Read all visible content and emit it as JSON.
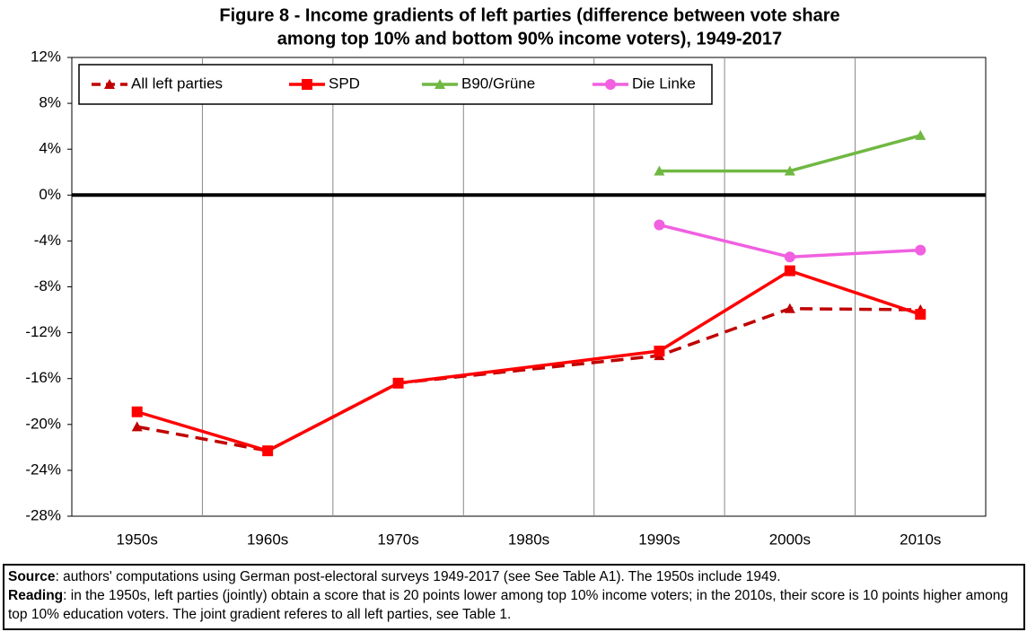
{
  "chart_data": {
    "type": "line",
    "title": [
      "Figure 8 - Income gradients of left parties (difference between vote share",
      "among top 10% and bottom 90% income voters), 1949-2017"
    ],
    "categories": [
      "1950s",
      "1960s",
      "1970s",
      "1980s",
      "1990s",
      "2000s",
      "2010s"
    ],
    "series": [
      {
        "name": "All left parties",
        "color": "#c00000",
        "dashed": true,
        "marker": "triangle",
        "values": [
          -20.2,
          -22.3,
          -16.4,
          null,
          -14.0,
          -9.9,
          -10.0
        ]
      },
      {
        "name": "SPD",
        "color": "#ff0000",
        "dashed": false,
        "marker": "square",
        "values": [
          -18.9,
          -22.3,
          -16.4,
          null,
          -13.6,
          -6.6,
          -10.4
        ]
      },
      {
        "name": "B90/Grüne",
        "color": "#70b843",
        "dashed": false,
        "marker": "triangle",
        "values": [
          null,
          null,
          null,
          null,
          2.1,
          2.1,
          5.2
        ]
      },
      {
        "name": "Die Linke",
        "color": "#f060e0",
        "dashed": false,
        "marker": "circle",
        "values": [
          null,
          null,
          null,
          null,
          -2.6,
          -5.4,
          -4.8
        ]
      }
    ],
    "span_gaps": true,
    "ylim": [
      -28,
      12
    ],
    "yticks": [
      {
        "value": -28,
        "label": "-28%"
      },
      {
        "value": -24,
        "label": "-24%"
      },
      {
        "value": -20,
        "label": "-20%"
      },
      {
        "value": -16,
        "label": "-16%"
      },
      {
        "value": -12,
        "label": "-12%"
      },
      {
        "value": -8,
        "label": "-8%"
      },
      {
        "value": -4,
        "label": "-4%"
      },
      {
        "value": 0,
        "label": "0%"
      },
      {
        "value": 4,
        "label": "4%"
      },
      {
        "value": 8,
        "label": "8%"
      },
      {
        "value": 12,
        "label": "12%"
      }
    ],
    "grid": "vertical",
    "legend": "top-left",
    "notes": {
      "source_label": "Source",
      "source_text": ": authors' computations using German post-electoral surveys 1949-2017 (see See Table A1). The 1950s include 1949.",
      "reading_label": "Reading",
      "reading_text": ": in the 1950s, left parties (jointly) obtain a score that is 20 points lower among top 10% income voters; in the 2010s, their score is 10 points higher among top 10% education voters. The joint gradient referes to all left parties, see Table 1."
    }
  }
}
